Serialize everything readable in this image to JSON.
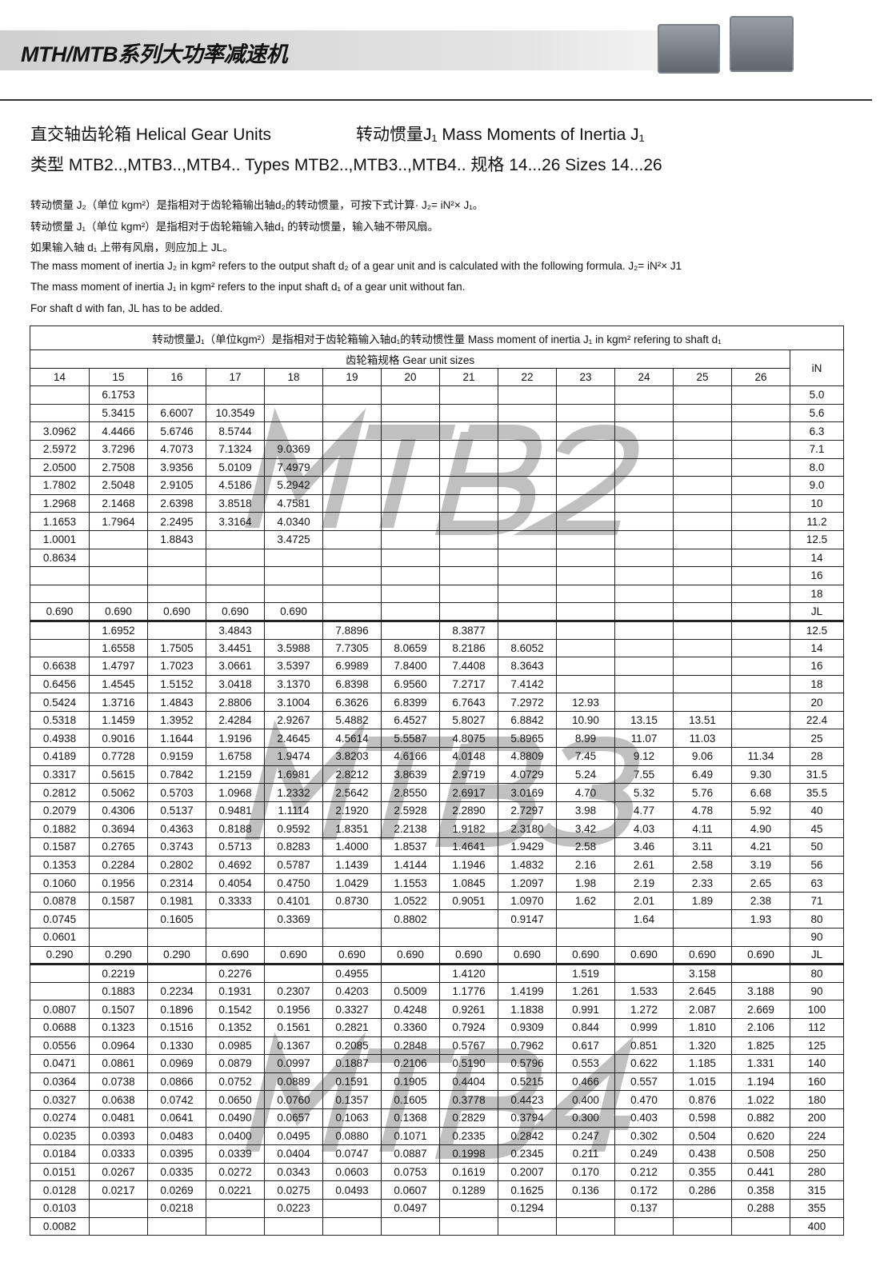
{
  "header": {
    "title": "MTH/MTB系列大功率减速机"
  },
  "headings": {
    "line1_left": "直交轴齿轮箱 Helical Gear Units",
    "line1_right": "转动惯量J₁ Mass Moments of Inertia J₁",
    "line2": "类型 MTB2..,MTB3..,MTB4..  Types MTB2..,MTB3..,MTB4.. 规格 14...26 Sizes 14...26"
  },
  "notes": [
    "转动惯量 J₂（单位 kgm²）是指相对于齿轮箱输出轴d₂的转动惯量，可按下式计算· J₂= iN²× J₁。",
    "转动惯量 J₁（单位 kgm²）是指相对于齿轮箱输入轴d₁ 的转动惯量，输入轴不带风扇。",
    "如果输入轴 d₁ 上带有风扇，则应加上 JL。",
    "The mass moment of inertia J₂ in kgm² refers to the output shaft d₂ of a gear unit and is calculated with the following formula. J₂= iN²× J1",
    "The mass moment of inertia J₁ in kgm² refers to the input shaft d₁ of a gear unit without fan.",
    "For shaft d with fan, JL has to be added."
  ],
  "table": {
    "title": "转动惯量J₁（单位kgm²）是指相对于齿轮箱输入轴d₁的转动惯性量 Mass moment of inertia J₁ in kgm² refering to shaft d₁",
    "group_header": "齿轮箱规格   Gear unit sizes",
    "in_header": "iN",
    "sizes": [
      "14",
      "15",
      "16",
      "17",
      "18",
      "19",
      "20",
      "21",
      "22",
      "23",
      "24",
      "25",
      "26"
    ],
    "sections": [
      {
        "watermark": "MTB2",
        "rows": [
          {
            "iN": "5.0",
            "v": [
              "",
              "6.1753",
              "",
              "",
              "",
              "",
              "",
              "",
              "",
              "",
              "",
              "",
              ""
            ]
          },
          {
            "iN": "5.6",
            "v": [
              "",
              "5.3415",
              "6.6007",
              "10.3549",
              "",
              "",
              "",
              "",
              "",
              "",
              "",
              "",
              ""
            ]
          },
          {
            "iN": "6.3",
            "v": [
              "3.0962",
              "4.4466",
              "5.6746",
              "8.5744",
              "",
              "",
              "",
              "",
              "",
              "",
              "",
              "",
              ""
            ]
          },
          {
            "iN": "7.1",
            "v": [
              "2.5972",
              "3.7296",
              "4.7073",
              "7.1324",
              "9.0369",
              "",
              "",
              "",
              "",
              "",
              "",
              "",
              ""
            ]
          },
          {
            "iN": "8.0",
            "v": [
              "2.0500",
              "2.7508",
              "3.9356",
              "5.0109",
              "7.4979",
              "",
              "",
              "",
              "",
              "",
              "",
              "",
              ""
            ]
          },
          {
            "iN": "9.0",
            "v": [
              "1.7802",
              "2.5048",
              "2.9105",
              "4.5186",
              "5.2942",
              "",
              "",
              "",
              "",
              "",
              "",
              "",
              ""
            ]
          },
          {
            "iN": "10",
            "v": [
              "1.2968",
              "2.1468",
              "2.6398",
              "3.8518",
              "4.7581",
              "",
              "",
              "",
              "",
              "",
              "",
              "",
              ""
            ]
          },
          {
            "iN": "11.2",
            "v": [
              "1.1653",
              "1.7964",
              "2.2495",
              "3.3164",
              "4.0340",
              "",
              "",
              "",
              "",
              "",
              "",
              "",
              ""
            ]
          },
          {
            "iN": "12.5",
            "v": [
              "1.0001",
              "",
              "1.8843",
              "",
              "3.4725",
              "",
              "",
              "",
              "",
              "",
              "",
              "",
              ""
            ]
          },
          {
            "iN": "14",
            "v": [
              "0.8634",
              "",
              "",
              "",
              "",
              "",
              "",
              "",
              "",
              "",
              "",
              "",
              ""
            ]
          },
          {
            "iN": "16",
            "v": [
              "",
              "",
              "",
              "",
              "",
              "",
              "",
              "",
              "",
              "",
              "",
              "",
              ""
            ]
          },
          {
            "iN": "18",
            "v": [
              "",
              "",
              "",
              "",
              "",
              "",
              "",
              "",
              "",
              "",
              "",
              "",
              ""
            ]
          },
          {
            "iN": "JL",
            "v": [
              "0.690",
              "0.690",
              "0.690",
              "0.690",
              "0.690",
              "",
              "",
              "",
              "",
              "",
              "",
              "",
              ""
            ]
          }
        ]
      },
      {
        "watermark": "MTB3",
        "rows": [
          {
            "iN": "12.5",
            "v": [
              "",
              "1.6952",
              "",
              "3.4843",
              "",
              "7.8896",
              "",
              "8.3877",
              "",
              "",
              "",
              "",
              ""
            ]
          },
          {
            "iN": "14",
            "v": [
              "",
              "1.6558",
              "1.7505",
              "3.4451",
              "3.5988",
              "7.7305",
              "8.0659",
              "8.2186",
              "8.6052",
              "",
              "",
              "",
              ""
            ]
          },
          {
            "iN": "16",
            "v": [
              "0.6638",
              "1.4797",
              "1.7023",
              "3.0661",
              "3.5397",
              "6.9989",
              "7.8400",
              "7.4408",
              "8.3643",
              "",
              "",
              "",
              ""
            ]
          },
          {
            "iN": "18",
            "v": [
              "0.6456",
              "1.4545",
              "1.5152",
              "3.0418",
              "3.1370",
              "6.8398",
              "6.9560",
              "7.2717",
              "7.4142",
              "",
              "",
              "",
              ""
            ]
          },
          {
            "iN": "20",
            "v": [
              "0.5424",
              "1.3716",
              "1.4843",
              "2.8806",
              "3.1004",
              "6.3626",
              "6.8399",
              "6.7643",
              "7.2972",
              "12.93",
              "",
              "",
              ""
            ]
          },
          {
            "iN": "22.4",
            "v": [
              "0.5318",
              "1.1459",
              "1.3952",
              "2.4284",
              "2.9267",
              "5.4882",
              "6.4527",
              "5.8027",
              "6.8842",
              "10.90",
              "13.15",
              "13.51",
              ""
            ]
          },
          {
            "iN": "25",
            "v": [
              "0.4938",
              "0.9016",
              "1.1644",
              "1.9196",
              "2.4645",
              "4.5614",
              "5.5587",
              "4.8075",
              "5.8965",
              "8.99",
              "11.07",
              "11.03",
              ""
            ]
          },
          {
            "iN": "28",
            "v": [
              "0.4189",
              "0.7728",
              "0.9159",
              "1.6758",
              "1.9474",
              "3.8203",
              "4.6166",
              "4.0148",
              "4.8809",
              "7.45",
              "9.12",
              "9.06",
              "11.34"
            ]
          },
          {
            "iN": "31.5",
            "v": [
              "0.3317",
              "0.5615",
              "0.7842",
              "1.2159",
              "1.6981",
              "2.8212",
              "3.8639",
              "2.9719",
              "4.0729",
              "5.24",
              "7.55",
              "6.49",
              "9.30"
            ]
          },
          {
            "iN": "35.5",
            "v": [
              "0.2812",
              "0.5062",
              "0.5703",
              "1.0968",
              "1.2332",
              "2.5642",
              "2.8550",
              "2.6917",
              "3.0169",
              "4.70",
              "5.32",
              "5.76",
              "6.68"
            ]
          },
          {
            "iN": "40",
            "v": [
              "0.2079",
              "0.4306",
              "0.5137",
              "0.9481",
              "1.1114",
              "2.1920",
              "2.5928",
              "2.2890",
              "2.7297",
              "3.98",
              "4.77",
              "4.78",
              "5.92"
            ]
          },
          {
            "iN": "45",
            "v": [
              "0.1882",
              "0.3694",
              "0.4363",
              "0.8188",
              "0.9592",
              "1.8351",
              "2.2138",
              "1.9182",
              "2.3180",
              "3.42",
              "4.03",
              "4.11",
              "4.90"
            ]
          },
          {
            "iN": "50",
            "v": [
              "0.1587",
              "0.2765",
              "0.3743",
              "0.5713",
              "0.8283",
              "1.4000",
              "1.8537",
              "1.4641",
              "1.9429",
              "2.58",
              "3.46",
              "3.11",
              "4.21"
            ]
          },
          {
            "iN": "56",
            "v": [
              "0.1353",
              "0.2284",
              "0.2802",
              "0.4692",
              "0.5787",
              "1.1439",
              "1.4144",
              "1.1946",
              "1.4832",
              "2.16",
              "2.61",
              "2.58",
              "3.19"
            ]
          },
          {
            "iN": "63",
            "v": [
              "0.1060",
              "0.1956",
              "0.2314",
              "0.4054",
              "0.4750",
              "1.0429",
              "1.1553",
              "1.0845",
              "1.2097",
              "1.98",
              "2.19",
              "2.33",
              "2.65"
            ]
          },
          {
            "iN": "71",
            "v": [
              "0.0878",
              "0.1587",
              "0.1981",
              "0.3333",
              "0.4101",
              "0.8730",
              "1.0522",
              "0.9051",
              "1.0970",
              "1.62",
              "2.01",
              "1.89",
              "2.38"
            ]
          },
          {
            "iN": "80",
            "v": [
              "0.0745",
              "",
              "0.1605",
              "",
              "0.3369",
              "",
              "0.8802",
              "",
              "0.9147",
              "",
              "1.64",
              "",
              "1.93"
            ]
          },
          {
            "iN": "90",
            "v": [
              "0.0601",
              "",
              "",
              "",
              "",
              "",
              "",
              "",
              "",
              "",
              "",
              "",
              ""
            ]
          },
          {
            "iN": "JL",
            "v": [
              "0.290",
              "0.290",
              "0.290",
              "0.690",
              "0.690",
              "0.690",
              "0.690",
              "0.690",
              "0.690",
              "0.690",
              "0.690",
              "0.690",
              "0.690"
            ]
          }
        ]
      },
      {
        "watermark": "MTB4",
        "rows": [
          {
            "iN": "80",
            "v": [
              "",
              "0.2219",
              "",
              "0.2276",
              "",
              "0.4955",
              "",
              "1.4120",
              "",
              "1.519",
              "",
              "3.158",
              ""
            ]
          },
          {
            "iN": "90",
            "v": [
              "",
              "0.1883",
              "0.2234",
              "0.1931",
              "0.2307",
              "0.4203",
              "0.5009",
              "1.1776",
              "1.4199",
              "1.261",
              "1.533",
              "2.645",
              "3.188"
            ]
          },
          {
            "iN": "100",
            "v": [
              "0.0807",
              "0.1507",
              "0.1896",
              "0.1542",
              "0.1956",
              "0.3327",
              "0.4248",
              "0.9261",
              "1.1838",
              "0.991",
              "1.272",
              "2.087",
              "2.669"
            ]
          },
          {
            "iN": "112",
            "v": [
              "0.0688",
              "0.1323",
              "0.1516",
              "0.1352",
              "0.1561",
              "0.2821",
              "0.3360",
              "0.7924",
              "0.9309",
              "0.844",
              "0.999",
              "1.810",
              "2.106"
            ]
          },
          {
            "iN": "125",
            "v": [
              "0.0556",
              "0.0964",
              "0.1330",
              "0.0985",
              "0.1367",
              "0.2085",
              "0.2848",
              "0.5767",
              "0.7962",
              "0.617",
              "0.851",
              "1.320",
              "1.825"
            ]
          },
          {
            "iN": "140",
            "v": [
              "0.0471",
              "0.0861",
              "0.0969",
              "0.0879",
              "0.0997",
              "0.1887",
              "0.2106",
              "0.5190",
              "0.5796",
              "0.553",
              "0.622",
              "1.185",
              "1.331"
            ]
          },
          {
            "iN": "160",
            "v": [
              "0.0364",
              "0.0738",
              "0.0866",
              "0.0752",
              "0.0889",
              "0.1591",
              "0.1905",
              "0.4404",
              "0.5215",
              "0.466",
              "0.557",
              "1.015",
              "1.194"
            ]
          },
          {
            "iN": "180",
            "v": [
              "0.0327",
              "0.0638",
              "0.0742",
              "0.0650",
              "0.0760",
              "0.1357",
              "0.1605",
              "0.3778",
              "0.4423",
              "0.400",
              "0.470",
              "0.876",
              "1.022"
            ]
          },
          {
            "iN": "200",
            "v": [
              "0.0274",
              "0.0481",
              "0.0641",
              "0.0490",
              "0.0657",
              "0.1063",
              "0.1368",
              "0.2829",
              "0.3794",
              "0.300",
              "0.403",
              "0.598",
              "0.882"
            ]
          },
          {
            "iN": "224",
            "v": [
              "0.0235",
              "0.0393",
              "0.0483",
              "0.0400",
              "0.0495",
              "0.0880",
              "0.1071",
              "0.2335",
              "0.2842",
              "0.247",
              "0.302",
              "0.504",
              "0.620"
            ]
          },
          {
            "iN": "250",
            "v": [
              "0.0184",
              "0.0333",
              "0.0395",
              "0.0339",
              "0.0404",
              "0.0747",
              "0.0887",
              "0.1998",
              "0.2345",
              "0.211",
              "0.249",
              "0.438",
              "0.508"
            ]
          },
          {
            "iN": "280",
            "v": [
              "0.0151",
              "0.0267",
              "0.0335",
              "0.0272",
              "0.0343",
              "0.0603",
              "0.0753",
              "0.1619",
              "0.2007",
              "0.170",
              "0.212",
              "0.355",
              "0.441"
            ]
          },
          {
            "iN": "315",
            "v": [
              "0.0128",
              "0.0217",
              "0.0269",
              "0.0221",
              "0.0275",
              "0.0493",
              "0.0607",
              "0.1289",
              "0.1625",
              "0.136",
              "0.172",
              "0.286",
              "0.358"
            ]
          },
          {
            "iN": "355",
            "v": [
              "0.0103",
              "",
              "0.0218",
              "",
              "0.0223",
              "",
              "0.0497",
              "",
              "0.1294",
              "",
              "0.137",
              "",
              "0.288"
            ]
          },
          {
            "iN": "400",
            "v": [
              "0.0082",
              "",
              "",
              "",
              "",
              "",
              "",
              "",
              "",
              "",
              "",
              "",
              ""
            ]
          }
        ]
      }
    ]
  }
}
